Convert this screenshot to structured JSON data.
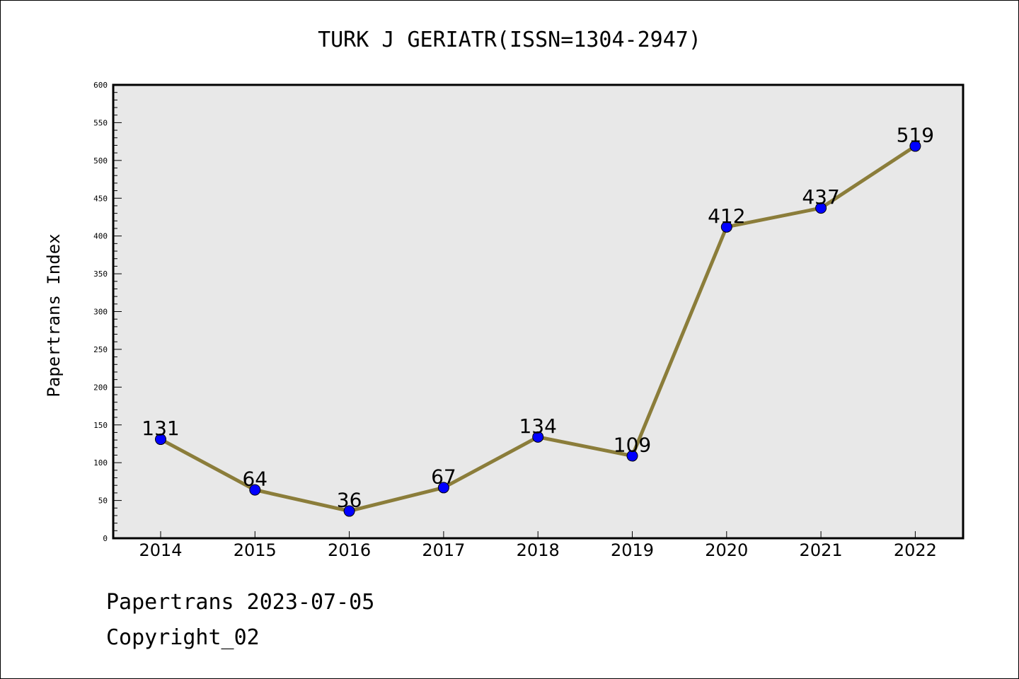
{
  "chart_data": {
    "type": "line",
    "title": "TURK J GERIATR(ISSN=1304-2947)",
    "xlabel": "",
    "ylabel": "Papertrans Index",
    "categories": [
      "2014",
      "2015",
      "2016",
      "2017",
      "2018",
      "2019",
      "2020",
      "2021",
      "2022"
    ],
    "series": [
      {
        "values": [
          131,
          64,
          36,
          67,
          134,
          109,
          412,
          437,
          519
        ]
      }
    ],
    "y_ticks": [
      0,
      50,
      100,
      150,
      200,
      250,
      300,
      350,
      400,
      450,
      500,
      550,
      600
    ],
    "ylim": [
      0,
      600
    ],
    "grid": false,
    "data_labels": true,
    "colors": {
      "line": "#8b7d3a",
      "marker": "#0000ff",
      "plot_background": "#e8e8e8"
    }
  },
  "footer": {
    "date_line": "Papertrans 2023-07-05",
    "copyright_line": "Copyright_02"
  }
}
